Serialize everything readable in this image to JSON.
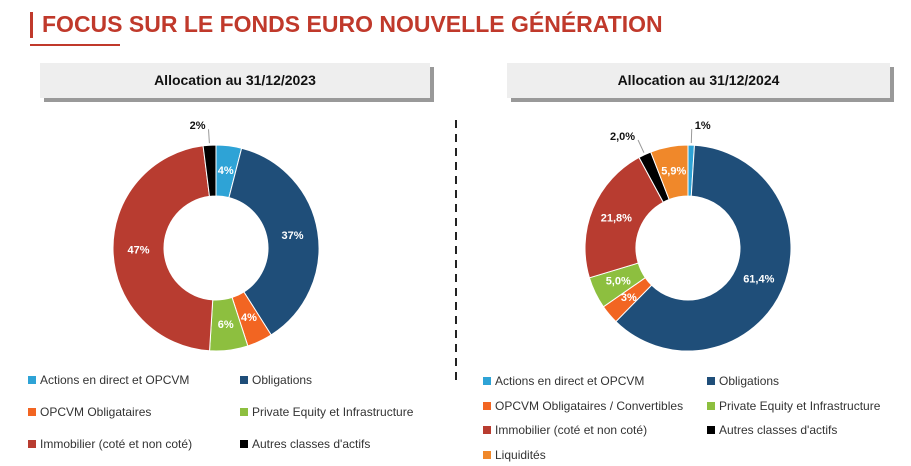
{
  "title": "FOCUS SUR LE FONDS EURO NOUVELLE GÉNÉRATION",
  "chart_data": [
    {
      "type": "donut",
      "title": "Allocation au 31/12/2023",
      "categories": [
        "Actions en direct et OPCVM",
        "Obligations",
        "OPCVM Obligataires",
        "Private Equity et Infrastructure",
        "Immobilier (coté et non coté)",
        "Autres classes d'actifs"
      ],
      "values": [
        4,
        37,
        4,
        6,
        47,
        2
      ],
      "value_labels": [
        "4%",
        "37%",
        "4%",
        "6%",
        "47%",
        "2%"
      ],
      "colors": [
        "#2ea3d6",
        "#1f4e79",
        "#f26522",
        "#8dbf3f",
        "#b83c30",
        "#000000"
      ]
    },
    {
      "type": "donut",
      "title": "Allocation au 31/12/2024",
      "categories": [
        "Actions en direct et OPCVM",
        "Obligations",
        "OPCVM Obligataires / Convertibles",
        "Private Equity et Infrastructure",
        "Immobilier (coté et non coté)",
        "Autres classes d'actifs",
        "Liquidités"
      ],
      "values": [
        1,
        61.4,
        3,
        5.0,
        21.8,
        2.0,
        5.9
      ],
      "value_labels": [
        "1%",
        "61,4%",
        "3%",
        "5,0%",
        "21,8%",
        "2,0%",
        "5,9%"
      ],
      "colors": [
        "#2ea3d6",
        "#1f4e79",
        "#f26522",
        "#8dbf3f",
        "#b83c30",
        "#000000",
        "#f0882a"
      ]
    }
  ]
}
